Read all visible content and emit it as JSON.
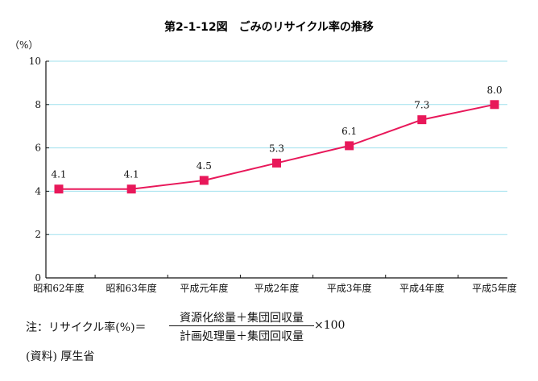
{
  "chart_data": {
    "type": "line",
    "title": "第2-1-12図　ごみのリサイクル率の推移",
    "ylabel": "（%）",
    "ylim": [
      0,
      10
    ],
    "yticks": [
      0,
      2,
      4,
      6,
      8,
      10
    ],
    "categories": [
      "昭和62年度",
      "昭和63年度",
      "平成元年度",
      "平成2年度",
      "平成3年度",
      "平成4年度",
      "平成5年度"
    ],
    "values": [
      4.1,
      4.1,
      4.5,
      5.3,
      6.1,
      7.3,
      8.0
    ],
    "value_labels": [
      "4.1",
      "4.1",
      "4.5",
      "5.3",
      "6.1",
      "7.3",
      "8.0"
    ],
    "grid": true,
    "line_color": "#e8185a",
    "grid_color": "#9fe0ee"
  },
  "note": {
    "prefix": "注：リサイクル率(%)＝",
    "numerator": "資源化総量＋集団回収量",
    "denominator": "計画処理量＋集団回収量",
    "suffix": "×100"
  },
  "source": "(資料) 厚生省"
}
